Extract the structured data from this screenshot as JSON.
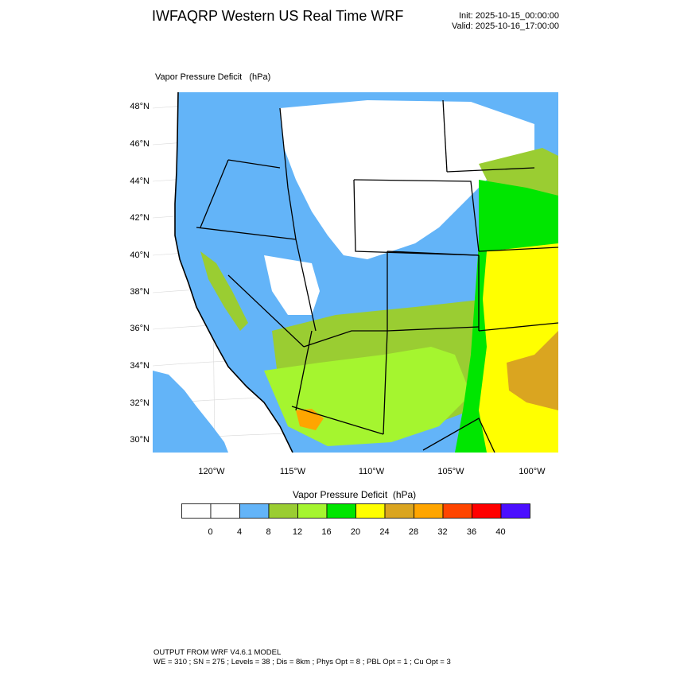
{
  "header": {
    "title": "IWFAQRP Western US Real Time WRF",
    "init": "Init: 2025-10-15_00:00:00",
    "valid": "Valid: 2025-10-16_17:00:00"
  },
  "map": {
    "field_label": "Vapor Pressure Deficit   (hPa)",
    "lat_labels": [
      "48°N",
      "46°N",
      "44°N",
      "42°N",
      "40°N",
      "38°N",
      "36°N",
      "34°N",
      "32°N",
      "30°N"
    ],
    "lon_labels": [
      "120°W",
      "115°W",
      "110°W",
      "105°W",
      "100°W"
    ],
    "ocean_color": "#ffffff",
    "border_color": "#000000"
  },
  "colorbar": {
    "title": "Vapor Pressure Deficit  (hPa)",
    "levels": [
      "0",
      "4",
      "8",
      "12",
      "16",
      "20",
      "24",
      "28",
      "32",
      "36",
      "40"
    ],
    "colors": [
      "#ffffff",
      "#ffffff",
      "#63b4f8",
      "#9acd32",
      "#a5f52f",
      "#00e600",
      "#ffff00",
      "#daa520",
      "#ffa500",
      "#ff4500",
      "#ff0000",
      "#4b0fff"
    ]
  },
  "footer": {
    "line1": "OUTPUT FROM WRF V4.6.1 MODEL",
    "line2": "WE = 310 ; SN = 275 ; Levels = 38 ; Dis = 8km ; Phys Opt = 8 ; PBL Opt = 1 ; Cu Opt = 3"
  }
}
